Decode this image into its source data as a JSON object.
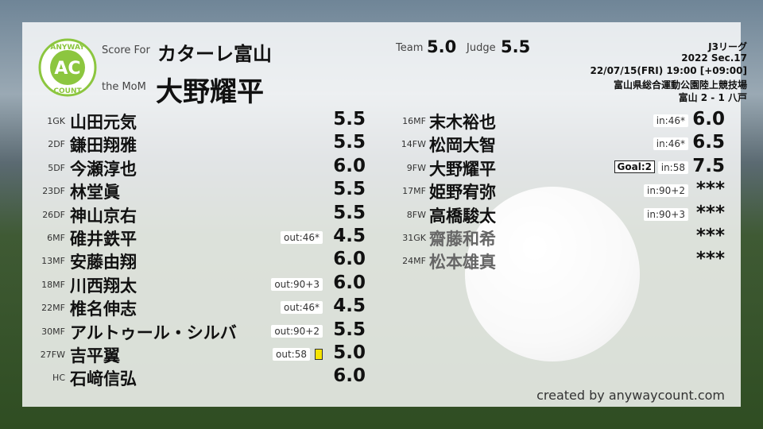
{
  "logo": {
    "top": "ANYWAY",
    "mark": "AC",
    "bottom": "COUNT"
  },
  "header": {
    "score_for_label": "Score For",
    "team": "カターレ富山",
    "mom_label": "the MoM",
    "mom": "大野耀平",
    "team_label": "Team",
    "team_score": "5.0",
    "judge_label": "Judge",
    "judge_score": "5.5",
    "league": "J3リーグ",
    "season": "2022 Sec.17",
    "datetime": "22/07/15(FRI) 19:00 [+09:00]",
    "venue": "富山県総合運動公園陸上競技場",
    "result": "富山 2 - 1 八戸"
  },
  "left_players": [
    {
      "num": "1",
      "pos": "GK",
      "name": "山田元気",
      "score": "5.5"
    },
    {
      "num": "2",
      "pos": "DF",
      "name": "鎌田翔雅",
      "score": "5.5"
    },
    {
      "num": "5",
      "pos": "DF",
      "name": "今瀬淳也",
      "score": "6.0"
    },
    {
      "num": "23",
      "pos": "DF",
      "name": "林堂眞",
      "score": "5.5"
    },
    {
      "num": "26",
      "pos": "DF",
      "name": "神山京右",
      "score": "5.5"
    },
    {
      "num": "6",
      "pos": "MF",
      "name": "碓井鉄平",
      "note": "out:46*",
      "score": "4.5"
    },
    {
      "num": "13",
      "pos": "MF",
      "name": "安藤由翔",
      "score": "6.0"
    },
    {
      "num": "18",
      "pos": "MF",
      "name": "川西翔太",
      "note": "out:90+3",
      "score": "6.0"
    },
    {
      "num": "22",
      "pos": "MF",
      "name": "椎名伸志",
      "note": "out:46*",
      "score": "4.5"
    },
    {
      "num": "30",
      "pos": "MF",
      "name": "アルトゥール・シルバ",
      "note": "out:90+2",
      "score": "5.5"
    },
    {
      "num": "27",
      "pos": "FW",
      "name": "吉平翼",
      "note": "out:58",
      "yellow_card": true,
      "score": "5.0"
    },
    {
      "pos": "HC",
      "name": "石﨑信弘",
      "score": "6.0"
    }
  ],
  "right_players": [
    {
      "num": "16",
      "pos": "MF",
      "name": "末木裕也",
      "note": "in:46*",
      "score": "6.0"
    },
    {
      "num": "14",
      "pos": "FW",
      "name": "松岡大智",
      "note": "in:46*",
      "score": "6.5"
    },
    {
      "num": "9",
      "pos": "FW",
      "name": "大野耀平",
      "goal": "Goal:2",
      "note": "in:58",
      "score": "7.5"
    },
    {
      "num": "17",
      "pos": "MF",
      "name": "姫野宥弥",
      "note": "in:90+2",
      "score": "***"
    },
    {
      "num": "8",
      "pos": "FW",
      "name": "高橋駿太",
      "note": "in:90+3",
      "score": "***"
    },
    {
      "num": "31",
      "pos": "GK",
      "name": "齋藤和希",
      "dimmed": true,
      "score": "***"
    },
    {
      "num": "24",
      "pos": "MF",
      "name": "松本雄真",
      "dimmed": true,
      "score": "***"
    }
  ],
  "footer": "created by anywaycount.com"
}
